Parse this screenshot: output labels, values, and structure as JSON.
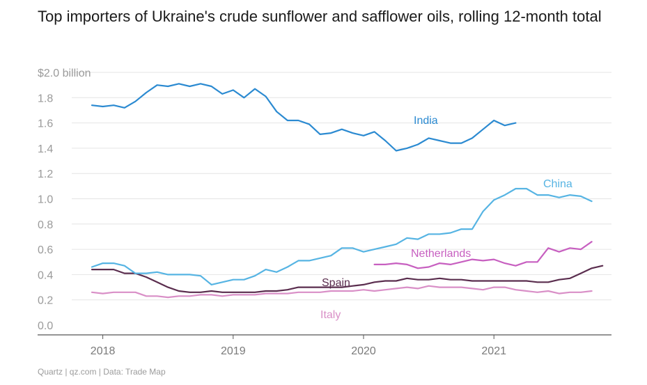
{
  "title": "Top importers of Ukraine's crude sunflower and safflower oils, rolling 12-month total",
  "source": "Quartz | qz.com | Data: Trade Map",
  "chart_data": {
    "type": "line",
    "ylim": [
      0,
      2.0
    ],
    "y_ticks": [
      {
        "value": 0.0,
        "label": "0.0"
      },
      {
        "value": 0.2,
        "label": "0.2"
      },
      {
        "value": 0.4,
        "label": "0.4"
      },
      {
        "value": 0.6,
        "label": "0.6"
      },
      {
        "value": 0.8,
        "label": "0.8"
      },
      {
        "value": 1.0,
        "label": "1.0"
      },
      {
        "value": 1.2,
        "label": "1.2"
      },
      {
        "value": 1.4,
        "label": "1.4"
      },
      {
        "value": 1.6,
        "label": "1.6"
      },
      {
        "value": 1.8,
        "label": "1.8"
      },
      {
        "value": 2.0,
        "label": "$2.0 billion"
      }
    ],
    "x_ticks": [
      "2018",
      "2019",
      "2020",
      "2021"
    ],
    "x_start": "2017-12",
    "grid": true,
    "series": [
      {
        "name": "India",
        "color": "#2b8ad1",
        "start": "2017-12",
        "values": [
          1.74,
          1.73,
          1.74,
          1.72,
          1.77,
          1.84,
          1.9,
          1.89,
          1.91,
          1.89,
          1.91,
          1.89,
          1.83,
          1.86,
          1.8,
          1.87,
          1.81,
          1.69,
          1.62,
          1.62,
          1.59,
          1.51,
          1.52,
          1.55,
          1.52,
          1.5,
          1.53,
          1.46,
          1.38,
          1.4,
          1.43,
          1.48,
          1.46,
          1.44,
          1.44,
          1.48,
          1.55,
          1.62,
          1.58,
          1.6
        ]
      },
      {
        "name": "China",
        "color": "#56b4e3",
        "start": "2017-12",
        "values": [
          0.46,
          0.49,
          0.49,
          0.47,
          0.41,
          0.41,
          0.42,
          0.4,
          0.4,
          0.4,
          0.39,
          0.32,
          0.34,
          0.36,
          0.36,
          0.39,
          0.44,
          0.42,
          0.46,
          0.51,
          0.51,
          0.53,
          0.55,
          0.61,
          0.61,
          0.58,
          0.6,
          0.62,
          0.64,
          0.69,
          0.68,
          0.72,
          0.72,
          0.73,
          0.76,
          0.76,
          0.9,
          0.99,
          1.03,
          1.08,
          1.08,
          1.03,
          1.03,
          1.01,
          1.03,
          1.02,
          0.98
        ]
      },
      {
        "name": "Netherlands",
        "color": "#c75fc0",
        "start": "2020-02",
        "values": [
          0.48,
          0.48,
          0.49,
          0.48,
          0.45,
          0.46,
          0.49,
          0.48,
          0.5,
          0.52,
          0.51,
          0.52,
          0.49,
          0.47,
          0.5,
          0.5,
          0.61,
          0.58,
          0.61,
          0.6,
          0.66
        ]
      },
      {
        "name": "Spain",
        "color": "#5a2d4e",
        "start": "2017-12",
        "values": [
          0.44,
          0.44,
          0.44,
          0.41,
          0.41,
          0.38,
          0.34,
          0.3,
          0.27,
          0.26,
          0.26,
          0.27,
          0.26,
          0.26,
          0.26,
          0.26,
          0.27,
          0.27,
          0.28,
          0.3,
          0.3,
          0.3,
          0.3,
          0.3,
          0.31,
          0.32,
          0.34,
          0.35,
          0.35,
          0.37,
          0.36,
          0.36,
          0.37,
          0.36,
          0.36,
          0.35,
          0.35,
          0.35,
          0.35,
          0.35,
          0.35,
          0.34,
          0.34,
          0.36,
          0.37,
          0.41,
          0.45,
          0.47
        ]
      },
      {
        "name": "Italy",
        "color": "#d98fc7",
        "start": "2017-12",
        "values": [
          0.26,
          0.25,
          0.26,
          0.26,
          0.26,
          0.23,
          0.23,
          0.22,
          0.23,
          0.23,
          0.24,
          0.24,
          0.23,
          0.24,
          0.24,
          0.24,
          0.25,
          0.25,
          0.25,
          0.26,
          0.26,
          0.26,
          0.27,
          0.27,
          0.27,
          0.28,
          0.27,
          0.28,
          0.29,
          0.3,
          0.29,
          0.31,
          0.3,
          0.3,
          0.3,
          0.29,
          0.28,
          0.3,
          0.3,
          0.28,
          0.27,
          0.26,
          0.27,
          0.25,
          0.26,
          0.26,
          0.27
        ]
      }
    ]
  }
}
